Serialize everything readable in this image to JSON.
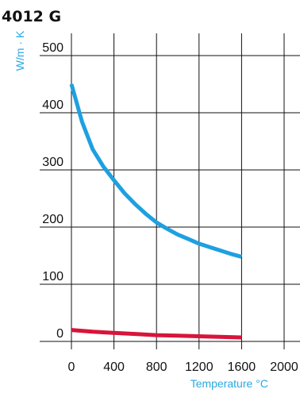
{
  "chart_data": {
    "type": "line",
    "title": "4012 G",
    "ylabel": "W/m · K",
    "xlabel": "Temperature",
    "xlabel_unit": "°C",
    "xlim": [
      0,
      2000
    ],
    "ylim": [
      0,
      500
    ],
    "x_ticks": [
      "0",
      "400",
      "800",
      "1200",
      "1600",
      "2000"
    ],
    "y_ticks": [
      "0",
      "100",
      "200",
      "300",
      "400",
      "500"
    ],
    "grid": true,
    "label_color": "#29a9e1",
    "series": [
      {
        "color": "#1ea0e0",
        "x": [
          0,
          100,
          200,
          300,
          400,
          500,
          600,
          700,
          800,
          900,
          1000,
          1100,
          1200,
          1300,
          1400,
          1500,
          1600
        ],
        "y": [
          450,
          384,
          336,
          306,
          282,
          259,
          240,
          223,
          208,
          197,
          187,
          179,
          171,
          165,
          159,
          153,
          148
        ]
      },
      {
        "color": "#d8143a",
        "x": [
          0,
          200,
          400,
          600,
          800,
          1000,
          1200,
          1400,
          1600
        ],
        "y": [
          20,
          17,
          15,
          13,
          11,
          10,
          9,
          8,
          7
        ]
      }
    ]
  }
}
